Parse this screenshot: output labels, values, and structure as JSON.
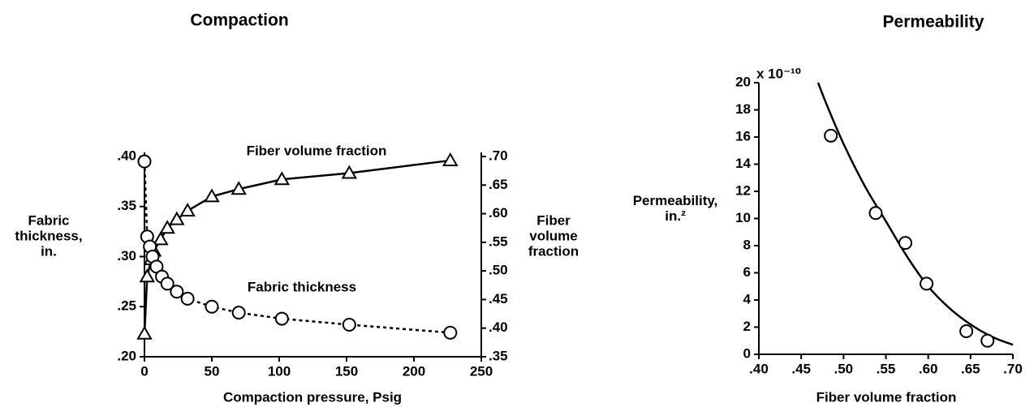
{
  "chart_data": [
    {
      "type": "line",
      "title": "Compaction",
      "xlabel": "Compaction pressure, Psig",
      "ylabel": [
        "Fabric",
        "thickness,",
        "in."
      ],
      "y2label": [
        "Fiber",
        "volume",
        "fraction"
      ],
      "xlim": [
        0,
        250
      ],
      "xticks": [
        0,
        50,
        100,
        150,
        200,
        250
      ],
      "ylim": [
        0.2,
        0.4
      ],
      "yticks": [
        {
          "value": 0.2,
          "label": ".20"
        },
        {
          "value": 0.25,
          "label": ".25"
        },
        {
          "value": 0.3,
          "label": ".30"
        },
        {
          "value": 0.35,
          "label": ".35"
        },
        {
          "value": 0.4,
          "label": ".40"
        }
      ],
      "y2lim": [
        0.35,
        0.7
      ],
      "y2ticks": [
        {
          "value": 0.35,
          "label": ".35"
        },
        {
          "value": 0.4,
          "label": ".40"
        },
        {
          "value": 0.45,
          "label": ".45"
        },
        {
          "value": 0.5,
          "label": ".50"
        },
        {
          "value": 0.55,
          "label": ".55"
        },
        {
          "value": 0.6,
          "label": ".60"
        },
        {
          "value": 0.65,
          "label": ".65"
        },
        {
          "value": 0.7,
          "label": ".70"
        }
      ],
      "color": "#000000",
      "series": [
        {
          "name": "Fiber volume fraction",
          "axis": "y2",
          "marker": "triangle",
          "dashed": false,
          "x": [
            0,
            2,
            5,
            7,
            12,
            17,
            24,
            32,
            50,
            70,
            102,
            152,
            227
          ],
          "values": [
            0.39,
            0.49,
            0.52,
            0.535,
            0.555,
            0.575,
            0.59,
            0.605,
            0.63,
            0.643,
            0.66,
            0.671,
            0.693
          ]
        },
        {
          "name": "Fabric thickness",
          "marker": "circle",
          "dashed": true,
          "x": [
            0,
            2,
            4,
            6,
            9,
            13,
            17,
            24,
            32,
            50,
            70,
            102,
            152,
            227
          ],
          "values": [
            0.395,
            0.32,
            0.31,
            0.3,
            0.29,
            0.28,
            0.273,
            0.265,
            0.258,
            0.25,
            0.244,
            0.238,
            0.232,
            0.224
          ]
        }
      ]
    },
    {
      "type": "scatter",
      "title": "Permeability",
      "xlabel": "Fiber volume fraction",
      "ylabel": [
        "Permeability,",
        "in.²"
      ],
      "multiplier": "x 10⁻¹⁰",
      "xlim": [
        0.4,
        0.7
      ],
      "xticks": [
        {
          "value": 0.4,
          "label": ".40"
        },
        {
          "value": 0.45,
          "label": ".45"
        },
        {
          "value": 0.5,
          "label": ".50"
        },
        {
          "value": 0.55,
          "label": ".55"
        },
        {
          "value": 0.6,
          "label": ".60"
        },
        {
          "value": 0.65,
          "label": ".65"
        },
        {
          "value": 0.7,
          "label": ".70"
        }
      ],
      "ylim": [
        0,
        20
      ],
      "yticks": [
        0,
        2,
        4,
        6,
        8,
        10,
        12,
        14,
        16,
        18,
        20
      ],
      "color": "#000000",
      "series": [
        {
          "marker": "circle",
          "x": [
            0.485,
            0.538,
            0.573,
            0.598,
            0.645,
            0.67
          ],
          "values": [
            16.1,
            10.4,
            8.2,
            5.2,
            1.7,
            1.0
          ]
        }
      ],
      "fit": {
        "x": [
          0.47,
          0.48,
          0.5,
          0.525,
          0.55,
          0.575,
          0.6,
          0.625,
          0.65,
          0.675,
          0.7
        ],
        "values": [
          20,
          18.4,
          15.5,
          12.4,
          9.8,
          7.2,
          5.0,
          3.4,
          2.2,
          1.3,
          0.7
        ]
      }
    }
  ]
}
